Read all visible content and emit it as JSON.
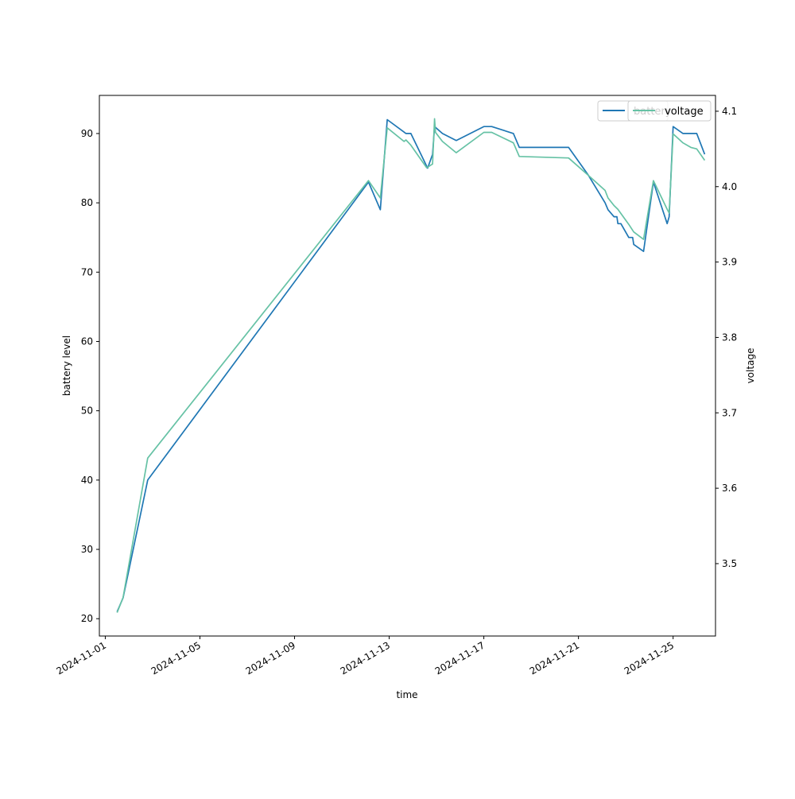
{
  "chart_data": {
    "type": "line",
    "xlabel": "time",
    "ylabel_left": "battery level",
    "ylabel_right": "voltage",
    "x_ticks": [
      "2024-11-01",
      "2024-11-05",
      "2024-11-09",
      "2024-11-13",
      "2024-11-17",
      "2024-11-21",
      "2024-11-25"
    ],
    "xlim": [
      "2024-10-31T18:00",
      "2024-11-26T19:00"
    ],
    "ylim_left": [
      17.5,
      95.5
    ],
    "ylim_right": [
      3.404,
      4.121
    ],
    "y_ticks_left": [
      20,
      30,
      40,
      50,
      60,
      70,
      80,
      90
    ],
    "y_ticks_right": [
      3.5,
      3.6,
      3.7,
      3.8,
      3.9,
      4.0,
      4.1
    ],
    "legend_position": "upper right",
    "grid": false,
    "series": [
      {
        "name": "battery",
        "axis": "left",
        "color": "#1f77b4",
        "points": [
          [
            "2024-11-01T12:00",
            21
          ],
          [
            "2024-11-01T18:00",
            23
          ],
          [
            "2024-11-02T19:00",
            40
          ],
          [
            "2024-11-12T03:00",
            83
          ],
          [
            "2024-11-12T15:00",
            79
          ],
          [
            "2024-11-12T22:00",
            92
          ],
          [
            "2024-11-13T17:00",
            90
          ],
          [
            "2024-11-13T22:00",
            90
          ],
          [
            "2024-11-14T15:00",
            85
          ],
          [
            "2024-11-14T20:00",
            87
          ],
          [
            "2024-11-14T22:00",
            91
          ],
          [
            "2024-11-15T06:00",
            90
          ],
          [
            "2024-11-15T20:00",
            89
          ],
          [
            "2024-11-17T00:00",
            91
          ],
          [
            "2024-11-17T08:00",
            91
          ],
          [
            "2024-11-18T06:00",
            90
          ],
          [
            "2024-11-18T12:00",
            88
          ],
          [
            "2024-11-20T14:00",
            88
          ],
          [
            "2024-11-21T10:00",
            84
          ],
          [
            "2024-11-22T03:00",
            80
          ],
          [
            "2024-11-22T06:00",
            79
          ],
          [
            "2024-11-22T12:00",
            78
          ],
          [
            "2024-11-22T15:00",
            78
          ],
          [
            "2024-11-22T16:00",
            77
          ],
          [
            "2024-11-22T19:00",
            77
          ],
          [
            "2024-11-23T03:00",
            75
          ],
          [
            "2024-11-23T07:00",
            75
          ],
          [
            "2024-11-23T08:00",
            74
          ],
          [
            "2024-11-23T18:00",
            73
          ],
          [
            "2024-11-24T04:00",
            83
          ],
          [
            "2024-11-24T18:00",
            77
          ],
          [
            "2024-11-24T20:00",
            78
          ],
          [
            "2024-11-25T00:00",
            91
          ],
          [
            "2024-11-25T10:00",
            90
          ],
          [
            "2024-11-25T18:00",
            90
          ],
          [
            "2024-11-26T00:00",
            90
          ],
          [
            "2024-11-26T08:00",
            87
          ]
        ]
      },
      {
        "name": "voltage",
        "axis": "right",
        "color": "#66c2a5",
        "points": [
          [
            "2024-11-01T12:00",
            3.435
          ],
          [
            "2024-11-01T18:00",
            3.455
          ],
          [
            "2024-11-02T19:00",
            3.64
          ],
          [
            "2024-11-12T03:00",
            4.008
          ],
          [
            "2024-11-12T15:00",
            3.985
          ],
          [
            "2024-11-12T22:00",
            4.078
          ],
          [
            "2024-11-13T15:00",
            4.06
          ],
          [
            "2024-11-13T17:00",
            4.062
          ],
          [
            "2024-11-13T22:00",
            4.055
          ],
          [
            "2024-11-14T14:00",
            4.025
          ],
          [
            "2024-11-14T20:00",
            4.03
          ],
          [
            "2024-11-14T22:00",
            4.09
          ],
          [
            "2024-11-14T23:00",
            4.072
          ],
          [
            "2024-11-15T06:00",
            4.06
          ],
          [
            "2024-11-15T20:00",
            4.045
          ],
          [
            "2024-11-17T00:00",
            4.072
          ],
          [
            "2024-11-17T08:00",
            4.072
          ],
          [
            "2024-11-18T06:00",
            4.058
          ],
          [
            "2024-11-18T12:00",
            4.04
          ],
          [
            "2024-11-20T14:00",
            4.038
          ],
          [
            "2024-11-21T10:00",
            4.015
          ],
          [
            "2024-11-22T03:00",
            3.995
          ],
          [
            "2024-11-22T06:00",
            3.985
          ],
          [
            "2024-11-22T12:00",
            3.975
          ],
          [
            "2024-11-22T16:00",
            3.97
          ],
          [
            "2024-11-23T03:00",
            3.95
          ],
          [
            "2024-11-23T08:00",
            3.94
          ],
          [
            "2024-11-23T18:00",
            3.93
          ],
          [
            "2024-11-24T04:00",
            4.008
          ],
          [
            "2024-11-24T18:00",
            3.97
          ],
          [
            "2024-11-24T20:00",
            3.965
          ],
          [
            "2024-11-25T00:00",
            4.07
          ],
          [
            "2024-11-25T10:00",
            4.058
          ],
          [
            "2024-11-25T18:00",
            4.052
          ],
          [
            "2024-11-26T00:00",
            4.05
          ],
          [
            "2024-11-26T08:00",
            4.035
          ]
        ]
      }
    ]
  }
}
